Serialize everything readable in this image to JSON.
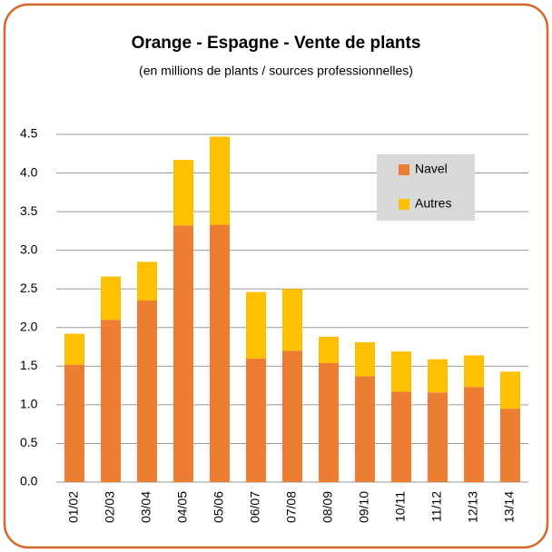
{
  "chart_data": {
    "type": "stacked_bar",
    "title": "Orange - Espagne - Vente de plants",
    "subtitle": "(en millions de plants / sources professionnelles)",
    "categories": [
      "01/02",
      "02/03",
      "03/04",
      "04/05",
      "05/06",
      "06/07",
      "07/08",
      "08/09",
      "09/10",
      "10/11",
      "11/12",
      "12/13",
      "13/14"
    ],
    "series": [
      {
        "name": "Navel",
        "color": "#ed7d31",
        "values": [
          1.52,
          2.1,
          2.35,
          3.32,
          3.33,
          1.6,
          1.7,
          1.54,
          1.37,
          1.17,
          1.16,
          1.23,
          0.95
        ]
      },
      {
        "name": "Autres",
        "color": "#ffc000",
        "values": [
          0.4,
          0.56,
          0.5,
          0.85,
          1.14,
          0.86,
          0.8,
          0.34,
          0.44,
          0.52,
          0.43,
          0.41,
          0.48
        ]
      }
    ],
    "ylim": [
      0,
      4.5
    ],
    "yticks": [
      {
        "value": 0,
        "label": "0.0"
      },
      0.5,
      {
        "value": 1,
        "label": "1.0"
      },
      1.5,
      {
        "value": 2,
        "label": "2.0"
      },
      2.5,
      {
        "value": 3,
        "label": "3.0"
      },
      3.5,
      {
        "value": 4,
        "label": "4.0"
      },
      4.5
    ],
    "grid": true,
    "legend": "upper right"
  }
}
